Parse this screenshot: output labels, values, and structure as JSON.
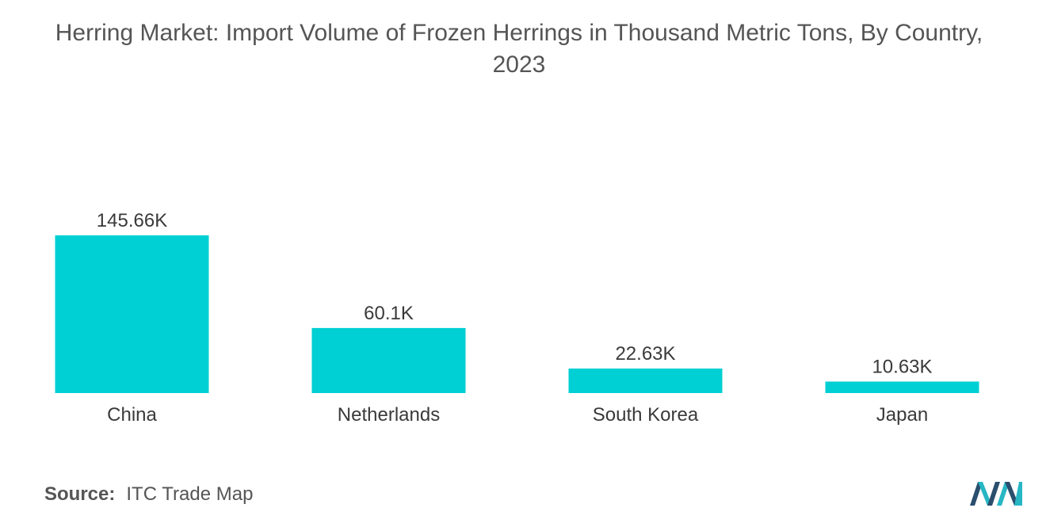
{
  "title_line1": "Herring Market: Import Volume of Frozen Herrings in Thousand Metric Tons, By Country,",
  "title_line2": "2023",
  "source_label": "Source:",
  "source_text": "ITC Trade Map",
  "colors": {
    "bar": "#00cfd3",
    "text": "#3a3a3a",
    "title": "#555555",
    "logo_dark": "#2a4e6e",
    "logo_light": "#27b6c4"
  },
  "icons": {
    "logo": "mordor-intelligence-logo"
  },
  "chart_data": {
    "type": "bar",
    "title": "Herring Market: Import Volume of Frozen Herrings in Thousand Metric Tons, By Country, 2023",
    "categories": [
      "China",
      "Netherlands",
      "South Korea",
      "Japan"
    ],
    "values": [
      145.66,
      60.1,
      22.63,
      10.63
    ],
    "data_labels": [
      "145.66K",
      "60.1K",
      "22.63K",
      "10.63K"
    ],
    "xlabel": "",
    "ylabel": "",
    "ylim": [
      0,
      145.66
    ],
    "grid": false,
    "legend": "none"
  }
}
